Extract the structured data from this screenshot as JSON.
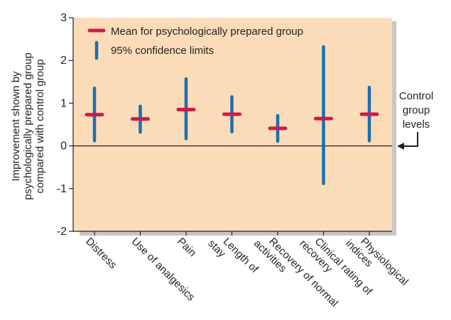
{
  "chart_data": {
    "type": "errorbar",
    "categories": [
      [
        "Distress"
      ],
      [
        "Use of analgesics"
      ],
      [
        "Pain"
      ],
      [
        "Length of",
        "stay"
      ],
      [
        "Recovery of normal",
        "activities"
      ],
      [
        "Clinical rating of",
        "recovery"
      ],
      [
        "Physiological",
        "indices"
      ]
    ],
    "series": [
      {
        "name": "Mean for psychologically prepared group",
        "values": [
          0.73,
          0.63,
          0.85,
          0.74,
          0.41,
          0.64,
          0.74
        ]
      },
      {
        "name": "95% confidence limits",
        "lower": [
          0.12,
          0.32,
          0.17,
          0.33,
          0.11,
          -0.88,
          0.12
        ],
        "upper": [
          1.35,
          0.93,
          1.57,
          1.15,
          0.71,
          2.32,
          1.37
        ]
      }
    ],
    "ylabel_lines": [
      "Improvement shown by",
      "psychologically prepared group",
      "compared with control group"
    ],
    "ylim": [
      -2,
      3
    ],
    "yticks": [
      -2,
      -1,
      0,
      1,
      2,
      3
    ],
    "grid": false,
    "legend_position": "top-left",
    "annotation": [
      "Control",
      "group",
      "levels"
    ],
    "colors": {
      "background": "#fbdcb8",
      "mean": "#d2194b",
      "ci": "#1a6fae",
      "axis": "#231f20",
      "shadow": "#c8c6c4"
    }
  }
}
